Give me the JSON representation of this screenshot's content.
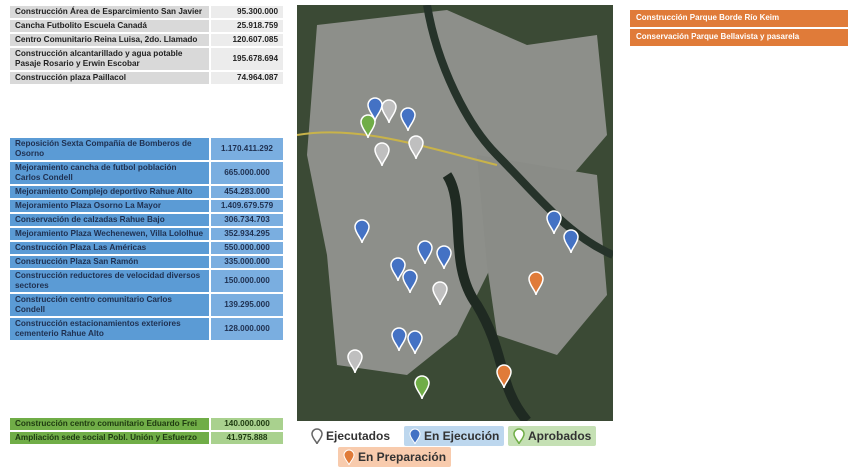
{
  "gray_table": {
    "rows": [
      [
        "Construcción Área de Esparcimiento San Javier",
        "95.300.000"
      ],
      [
        "Cancha Futbolito Escuela Canadá",
        "25.918.759"
      ],
      [
        "Centro Comunitario Reina Luisa, 2do. Llamado",
        "120.607.085"
      ],
      [
        "Construcción alcantarillado y agua potable Pasaje Rosario y Erwin Escobar",
        "195.678.694"
      ],
      [
        "Construcción plaza Paillacol",
        "74.964.087"
      ]
    ]
  },
  "blue_table": {
    "rows": [
      [
        "Reposición Sexta Compañía de Bomberos de Osorno",
        "1.170.411.292"
      ],
      [
        "Mejoramiento cancha de futbol población Carlos Condell",
        "665.000.000"
      ],
      [
        "Mejoramiento Complejo deportivo Rahue Alto",
        "454.283.000"
      ],
      [
        "Mejoramiento Plaza Osorno La Mayor",
        "1.409.679.579"
      ],
      [
        "Conservación de calzadas Rahue Bajo",
        "306.734.703"
      ],
      [
        "Mejoramiento Plaza Wechenewen, Villa Lololhue",
        "352.934.295"
      ],
      [
        "Construcción Plaza Las Américas",
        "550.000.000"
      ],
      [
        "Construcción Plaza San Ramón",
        "335.000.000"
      ],
      [
        "Construcción reductores de velocidad diversos sectores",
        "150.000.000"
      ],
      [
        "Construcción centro comunitario Carlos Condell",
        "139.295.000"
      ],
      [
        "Construcción estacionamientos exteriores cementerio Rahue Alto",
        "128.000.000"
      ]
    ]
  },
  "green_table": {
    "rows": [
      [
        "Construcción centro comunitario Eduardo Frei",
        "140.000.000"
      ],
      [
        "Ampliación sede social Pobl. Unión y Esfuerzo",
        "41.975.888"
      ]
    ]
  },
  "orange_list": {
    "items": [
      "Construcción Parque Borde Río Keim",
      "Conservación Parque Bellavista y pasarela"
    ]
  },
  "legend": {
    "items": [
      "Ejecutados",
      "En Ejecución",
      "Aprobados",
      "En Preparación"
    ]
  }
}
